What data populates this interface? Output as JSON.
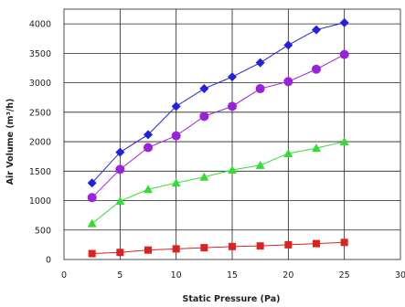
{
  "chart_data": {
    "type": "line",
    "title": "",
    "xlabel": "Static Pressure (Pa)",
    "ylabel": "Air Volume (m³/h)",
    "xlim": [
      0,
      30
    ],
    "ylim": [
      0,
      4250
    ],
    "xticks": [
      0,
      5,
      10,
      15,
      20,
      25,
      30
    ],
    "yticks": [
      0,
      500,
      1000,
      1500,
      2000,
      2500,
      3000,
      3500,
      4000
    ],
    "grid": true,
    "legend": "none",
    "x": [
      2.5,
      5,
      7.5,
      10,
      12.5,
      15,
      17.5,
      20,
      22.5,
      25
    ],
    "series": [
      {
        "color": "#2222dd",
        "marker": "diamond",
        "values": [
          1300,
          1820,
          2120,
          2600,
          2900,
          3100,
          3340,
          3640,
          3900,
          4020
        ]
      },
      {
        "color": "#9922dd",
        "marker": "circle",
        "values": [
          1050,
          1530,
          1900,
          2100,
          2430,
          2600,
          2900,
          3020,
          3230,
          3480
        ]
      },
      {
        "color": "#33dd33",
        "marker": "triangle",
        "values": [
          610,
          990,
          1190,
          1300,
          1400,
          1520,
          1600,
          1800,
          1890,
          2000
        ]
      },
      {
        "color": "#dd2222",
        "marker": "square",
        "values": [
          100,
          120,
          160,
          180,
          200,
          220,
          230,
          250,
          270,
          290
        ]
      }
    ]
  }
}
